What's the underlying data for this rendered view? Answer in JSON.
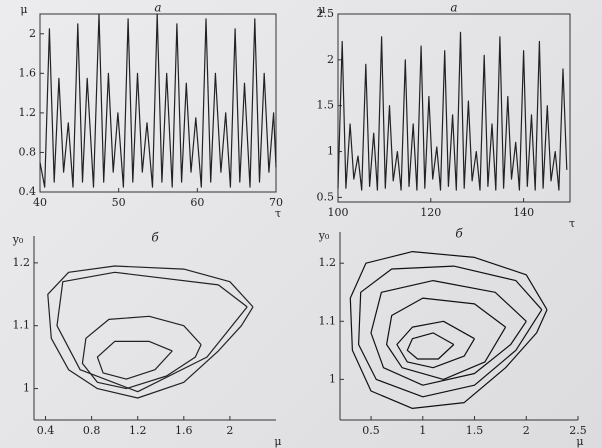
{
  "chart_data": [
    {
      "type": "line",
      "title": "а",
      "xlabel": "τ",
      "ylabel": "μ",
      "xlim": [
        40,
        70
      ],
      "xticks": [
        40,
        50,
        60,
        70
      ],
      "ylim": [
        0.4,
        2.2
      ],
      "yticks": [
        0.4,
        0.8,
        1.2,
        1.6,
        2.0
      ],
      "series": [
        {
          "color": "#222222",
          "x": [
            40,
            40.6,
            41.2,
            41.8,
            42.4,
            43.0,
            43.6,
            44.2,
            44.8,
            45.4,
            46.0,
            46.8,
            47.5,
            48.1,
            48.7,
            49.3,
            49.9,
            50.6,
            51.2,
            51.8,
            52.4,
            53.0,
            53.6,
            54.3,
            54.9,
            55.5,
            56.1,
            56.8,
            57.4,
            58.0,
            58.6,
            59.2,
            59.8,
            60.5,
            61.1,
            61.7,
            62.3,
            63.0,
            63.6,
            64.2,
            64.8,
            65.4,
            66.0,
            66.7,
            67.3,
            67.9,
            68.5,
            69.1,
            69.7,
            70
          ],
          "values": [
            0.7,
            0.45,
            2.05,
            0.5,
            1.55,
            0.6,
            1.1,
            0.45,
            2.1,
            0.5,
            1.55,
            0.45,
            2.2,
            0.5,
            1.6,
            0.6,
            1.2,
            0.45,
            2.15,
            0.5,
            1.6,
            0.6,
            1.1,
            0.45,
            2.2,
            0.5,
            1.6,
            0.45,
            2.1,
            0.5,
            1.5,
            0.6,
            1.15,
            0.45,
            2.15,
            0.5,
            1.6,
            0.6,
            1.2,
            0.45,
            2.05,
            0.5,
            1.5,
            0.45,
            2.15,
            0.5,
            1.6,
            0.6,
            1.2,
            0.65
          ]
        }
      ]
    },
    {
      "type": "line",
      "title": "а",
      "xlabel": "τ",
      "ylabel": "μ",
      "xlim": [
        100,
        150
      ],
      "xticks": [
        100,
        120,
        140
      ],
      "ylim": [
        0.45,
        2.5
      ],
      "yticks": [
        0.5,
        1.0,
        1.5,
        2.0,
        2.5
      ],
      "series": [
        {
          "color": "#222222",
          "x": [
            100,
            100.9,
            101.7,
            102.6,
            103.4,
            104.3,
            105.1,
            106,
            106.8,
            107.7,
            108.5,
            109.4,
            110.2,
            111.1,
            111.9,
            112.8,
            113.6,
            114.5,
            115.3,
            116.2,
            117,
            117.9,
            118.7,
            119.6,
            120.4,
            121.3,
            122.1,
            123,
            123.8,
            124.7,
            125.5,
            126.4,
            127.2,
            128.1,
            128.9,
            129.8,
            130.6,
            131.5,
            132.3,
            133.2,
            134,
            134.9,
            135.7,
            136.6,
            137.4,
            138.3,
            139.1,
            140,
            140.8,
            141.7,
            142.5,
            143.4,
            144.2,
            145.1,
            145.9,
            146.8,
            147.6,
            148.5,
            149.3
          ],
          "values": [
            0.6,
            2.2,
            0.6,
            1.3,
            0.7,
            0.95,
            0.58,
            1.95,
            0.62,
            1.2,
            0.58,
            2.25,
            0.6,
            1.5,
            0.68,
            1.0,
            0.58,
            2.0,
            0.62,
            1.3,
            0.58,
            2.15,
            0.6,
            1.6,
            0.7,
            1.05,
            0.58,
            2.1,
            0.62,
            1.4,
            0.58,
            2.3,
            0.6,
            1.55,
            0.68,
            1.0,
            0.58,
            2.05,
            0.62,
            1.3,
            0.58,
            2.25,
            0.6,
            1.6,
            0.7,
            1.1,
            0.58,
            2.1,
            0.62,
            1.4,
            0.58,
            2.2,
            0.6,
            1.5,
            0.68,
            1.0,
            0.58,
            1.9,
            0.8
          ]
        }
      ]
    },
    {
      "type": "line",
      "title": "б",
      "xlabel": "μ",
      "ylabel": "y₀",
      "xlim": [
        0.3,
        2.4
      ],
      "xticks": [
        0.4,
        0.8,
        1.2,
        1.6,
        2.0
      ],
      "ylim": [
        0.95,
        1.23
      ],
      "yticks": [
        1.0,
        1.1,
        1.2
      ],
      "series": [
        {
          "color": "#222222",
          "x": [
            2.2,
            2.0,
            1.6,
            1.0,
            0.6,
            0.42,
            0.45,
            0.6,
            0.85,
            1.2,
            1.6,
            1.9,
            2.1,
            2.2
          ],
          "values": [
            1.13,
            1.17,
            1.19,
            1.195,
            1.185,
            1.15,
            1.08,
            1.03,
            1.0,
            0.985,
            1.01,
            1.06,
            1.1,
            1.13
          ]
        },
        {
          "color": "#222222",
          "x": [
            2.15,
            1.9,
            1.0,
            0.55,
            0.5,
            0.7,
            1.2,
            1.8,
            2.15
          ],
          "values": [
            1.13,
            1.165,
            1.185,
            1.17,
            1.1,
            1.03,
            0.995,
            1.05,
            1.13
          ]
        },
        {
          "color": "#222222",
          "x": [
            1.75,
            1.6,
            1.3,
            0.95,
            0.75,
            0.72,
            0.85,
            1.1,
            1.45,
            1.7,
            1.75
          ],
          "values": [
            1.07,
            1.1,
            1.115,
            1.11,
            1.08,
            1.04,
            1.01,
            1.0,
            1.02,
            1.05,
            1.07
          ]
        },
        {
          "color": "#222222",
          "x": [
            1.5,
            1.3,
            1.0,
            0.85,
            0.9,
            1.1,
            1.35,
            1.5
          ],
          "values": [
            1.06,
            1.075,
            1.075,
            1.05,
            1.025,
            1.015,
            1.03,
            1.06
          ]
        }
      ]
    },
    {
      "type": "line",
      "title": "б",
      "xlabel": "μ",
      "ylabel": "y₀",
      "xlim": [
        0.2,
        2.5
      ],
      "xticks": [
        0.5,
        1.0,
        1.5,
        2.0,
        2.5
      ],
      "ylim": [
        0.93,
        1.24
      ],
      "yticks": [
        1.0,
        1.1,
        1.2
      ],
      "series": [
        {
          "color": "#111111",
          "x": [
            2.2,
            2.0,
            1.5,
            0.9,
            0.45,
            0.3,
            0.32,
            0.5,
            0.9,
            1.4,
            1.8,
            2.1,
            2.2
          ],
          "values": [
            1.12,
            1.18,
            1.21,
            1.22,
            1.2,
            1.14,
            1.05,
            0.98,
            0.95,
            0.96,
            1.02,
            1.08,
            1.12
          ]
        },
        {
          "color": "#111111",
          "x": [
            2.15,
            1.9,
            1.3,
            0.7,
            0.4,
            0.38,
            0.55,
            1.0,
            1.5,
            1.9,
            2.15
          ],
          "values": [
            1.12,
            1.17,
            1.195,
            1.19,
            1.15,
            1.06,
            1.0,
            0.97,
            0.99,
            1.05,
            1.12
          ]
        },
        {
          "color": "#111111",
          "x": [
            2.0,
            1.7,
            1.1,
            0.6,
            0.5,
            0.62,
            1.0,
            1.5,
            1.85,
            2.0
          ],
          "values": [
            1.1,
            1.15,
            1.17,
            1.15,
            1.08,
            1.02,
            0.99,
            1.01,
            1.06,
            1.1
          ]
        },
        {
          "color": "#111111",
          "x": [
            1.8,
            1.5,
            1.0,
            0.7,
            0.65,
            0.8,
            1.2,
            1.6,
            1.8
          ],
          "values": [
            1.09,
            1.13,
            1.14,
            1.11,
            1.06,
            1.02,
            1.0,
            1.03,
            1.09
          ]
        },
        {
          "color": "#111111",
          "x": [
            1.5,
            1.2,
            0.9,
            0.75,
            0.85,
            1.1,
            1.4,
            1.5
          ],
          "values": [
            1.07,
            1.1,
            1.09,
            1.06,
            1.03,
            1.02,
            1.04,
            1.07
          ]
        },
        {
          "color": "#111111",
          "x": [
            1.3,
            1.1,
            0.9,
            0.85,
            0.95,
            1.15,
            1.3
          ],
          "values": [
            1.06,
            1.08,
            1.07,
            1.05,
            1.035,
            1.035,
            1.06
          ]
        }
      ]
    }
  ]
}
